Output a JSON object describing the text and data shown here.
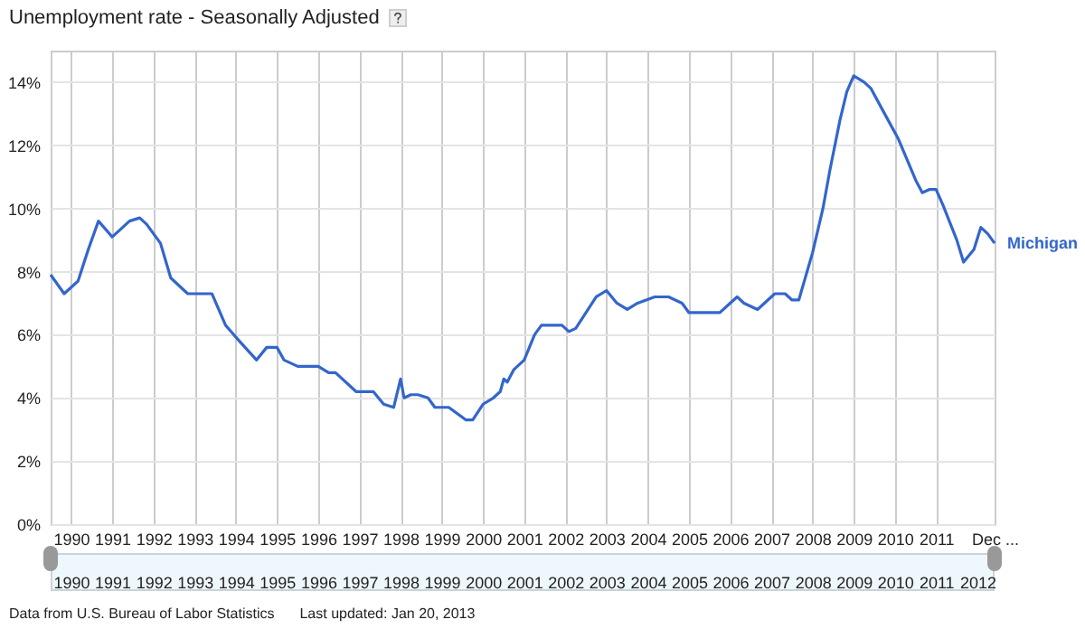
{
  "chart_data": {
    "type": "line",
    "title": "Unemployment rate - Seasonally Adjusted",
    "annotations": [
      "Data from U.S. Bureau of Labor Statistics",
      "Last updated: Jan 20, 2013"
    ],
    "grid": true,
    "xlim": [
      "1990-01",
      "2012-12"
    ],
    "xticks": [
      {
        "value": "1990-07",
        "label": "1990"
      },
      {
        "value": "1991-07",
        "label": "1991"
      },
      {
        "value": "1992-07",
        "label": "1992"
      },
      {
        "value": "1993-07",
        "label": "1993"
      },
      {
        "value": "1994-07",
        "label": "1994"
      },
      {
        "value": "1995-07",
        "label": "1995"
      },
      {
        "value": "1996-07",
        "label": "1996"
      },
      {
        "value": "1997-07",
        "label": "1997"
      },
      {
        "value": "1998-07",
        "label": "1998"
      },
      {
        "value": "1999-07",
        "label": "1999"
      },
      {
        "value": "2000-07",
        "label": "2000"
      },
      {
        "value": "2001-07",
        "label": "2001"
      },
      {
        "value": "2002-07",
        "label": "2002"
      },
      {
        "value": "2003-07",
        "label": "2003"
      },
      {
        "value": "2004-07",
        "label": "2004"
      },
      {
        "value": "2005-07",
        "label": "2005"
      },
      {
        "value": "2006-07",
        "label": "2006"
      },
      {
        "value": "2007-07",
        "label": "2007"
      },
      {
        "value": "2008-07",
        "label": "2008"
      },
      {
        "value": "2009-07",
        "label": "2009"
      },
      {
        "value": "2010-07",
        "label": "2010"
      },
      {
        "value": "2011-07",
        "label": "2011"
      },
      {
        "value": "2012-12",
        "label": "Dec ..."
      }
    ],
    "ylim": [
      0,
      15
    ],
    "yticks": [
      {
        "value": 0,
        "label": "0%"
      },
      {
        "value": 2,
        "label": "2%"
      },
      {
        "value": 4,
        "label": "4%"
      },
      {
        "value": 6,
        "label": "6%"
      },
      {
        "value": 8,
        "label": "8%"
      },
      {
        "value": 10,
        "label": "10%"
      },
      {
        "value": 12,
        "label": "12%"
      },
      {
        "value": 14,
        "label": "14%"
      }
    ],
    "series": [
      {
        "name": "Michigan",
        "color": "#3366cc",
        "x": [
          "1990-01",
          "1990-05",
          "1990-09",
          "1990-12",
          "1991-03",
          "1991-07",
          "1991-09",
          "1991-12",
          "1992-03",
          "1992-05",
          "1992-09",
          "1992-12",
          "1993-03",
          "1993-05",
          "1993-12",
          "1994-04",
          "1994-08",
          "1995-01",
          "1995-04",
          "1995-07",
          "1995-09",
          "1996-01",
          "1996-07",
          "1996-10",
          "1996-12",
          "1997-06",
          "1997-11",
          "1998-02",
          "1998-05",
          "1998-07",
          "1998-08",
          "1998-10",
          "1998-12",
          "1999-03",
          "1999-05",
          "1999-09",
          "2000-02",
          "2000-04",
          "2000-07",
          "2000-10",
          "2000-12",
          "2001-01",
          "2001-02",
          "2001-04",
          "2001-07",
          "2001-10",
          "2001-12",
          "2002-06",
          "2002-08",
          "2002-10",
          "2003-04",
          "2003-07",
          "2003-10",
          "2004-01",
          "2004-04",
          "2004-09",
          "2005-01",
          "2005-05",
          "2005-07",
          "2006-04",
          "2006-07",
          "2006-09",
          "2006-11",
          "2007-03",
          "2007-08",
          "2007-11",
          "2008-01",
          "2008-03",
          "2008-07",
          "2008-10",
          "2008-12",
          "2009-03",
          "2009-05",
          "2009-07",
          "2009-10",
          "2009-12",
          "2010-04",
          "2010-08",
          "2011-01",
          "2011-03",
          "2011-05",
          "2011-07",
          "2011-09",
          "2012-01",
          "2012-03",
          "2012-06",
          "2012-08",
          "2012-10",
          "2012-12"
        ],
        "values": [
          7.9,
          7.3,
          7.7,
          8.7,
          9.6,
          9.1,
          9.3,
          9.6,
          9.7,
          9.5,
          8.9,
          7.8,
          7.5,
          7.3,
          7.3,
          6.3,
          5.8,
          5.2,
          5.6,
          5.6,
          5.2,
          5.0,
          5.0,
          4.8,
          4.8,
          4.2,
          4.2,
          3.8,
          3.7,
          4.6,
          4.0,
          4.1,
          4.1,
          4.0,
          3.7,
          3.7,
          3.3,
          3.3,
          3.8,
          4.0,
          4.2,
          4.6,
          4.5,
          4.9,
          5.2,
          6.0,
          6.3,
          6.3,
          6.1,
          6.2,
          7.2,
          7.4,
          7.0,
          6.8,
          7.0,
          7.2,
          7.2,
          7.0,
          6.7,
          6.7,
          7.0,
          7.2,
          7.0,
          6.8,
          7.3,
          7.3,
          7.1,
          7.1,
          8.6,
          10.0,
          11.2,
          12.8,
          13.7,
          14.2,
          14.0,
          13.8,
          13.0,
          12.2,
          10.9,
          10.5,
          10.6,
          10.6,
          10.1,
          9.0,
          8.3,
          8.7,
          9.4,
          9.2,
          8.9
        ]
      }
    ],
    "x2lim": [
      "1990-01",
      "2012-12"
    ],
    "x2ticks": [
      {
        "value": "1990-07",
        "label": "1990"
      },
      {
        "value": "1991-07",
        "label": "1991"
      },
      {
        "value": "1992-07",
        "label": "1992"
      },
      {
        "value": "1993-07",
        "label": "1993"
      },
      {
        "value": "1994-07",
        "label": "1994"
      },
      {
        "value": "1995-07",
        "label": "1995"
      },
      {
        "value": "1996-07",
        "label": "1996"
      },
      {
        "value": "1997-07",
        "label": "1997"
      },
      {
        "value": "1998-07",
        "label": "1998"
      },
      {
        "value": "1999-07",
        "label": "1999"
      },
      {
        "value": "2000-07",
        "label": "2000"
      },
      {
        "value": "2001-07",
        "label": "2001"
      },
      {
        "value": "2002-07",
        "label": "2002"
      },
      {
        "value": "2003-07",
        "label": "2003"
      },
      {
        "value": "2004-07",
        "label": "2004"
      },
      {
        "value": "2005-07",
        "label": "2005"
      },
      {
        "value": "2006-07",
        "label": "2006"
      },
      {
        "value": "2007-07",
        "label": "2007"
      },
      {
        "value": "2008-07",
        "label": "2008"
      },
      {
        "value": "2009-07",
        "label": "2009"
      },
      {
        "value": "2010-07",
        "label": "2010"
      },
      {
        "value": "2011-07",
        "label": "2011"
      },
      {
        "value": "2012-07",
        "label": "2012"
      }
    ]
  }
}
